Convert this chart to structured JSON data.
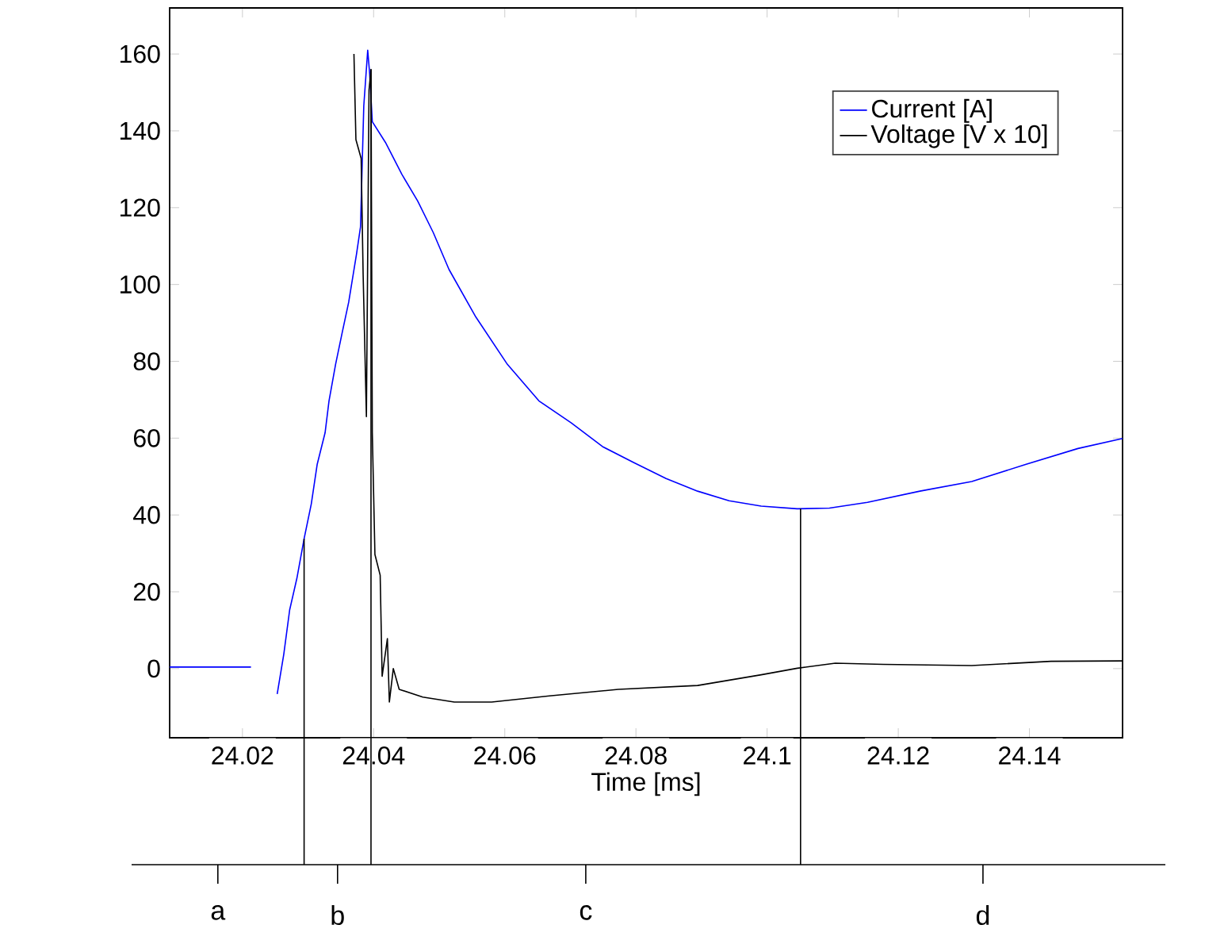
{
  "chart_data": {
    "type": "line",
    "xlabel": "Time [ms]",
    "xlim": [
      24.0089,
      24.1542
    ],
    "ylim": [
      -18,
      172
    ],
    "xticks": [
      24.02,
      24.04,
      24.06,
      24.08,
      24.1,
      24.12,
      24.14
    ],
    "yticks": [
      0,
      20,
      40,
      60,
      80,
      100,
      120,
      140,
      160
    ],
    "legend": "top right",
    "grid": false,
    "series": [
      {
        "name": "Current [A]",
        "color": "#0000ff",
        "x": [
          24.0089,
          24.0213,
          24.0223,
          24.0244,
          24.0253,
          24.0263,
          24.0272,
          24.0283,
          24.0294,
          24.0305,
          24.0314,
          24.0326,
          24.0332,
          24.0342,
          24.0352,
          24.0362,
          24.0374,
          24.038,
          24.0385,
          24.0391,
          24.0394,
          24.0398,
          24.0418,
          24.0443,
          24.0467,
          24.0491,
          24.0515,
          24.0556,
          24.0604,
          24.0652,
          24.0701,
          24.0749,
          24.0797,
          24.0846,
          24.0894,
          24.0942,
          24.0991,
          24.1046,
          24.1095,
          24.1153,
          24.1233,
          24.1312,
          24.1395,
          24.1474,
          24.1542
        ],
        "values": [
          0.4,
          0.4,
          null,
          null,
          -6.6,
          3.7,
          15.3,
          23.5,
          33.8,
          42.9,
          53.2,
          61.4,
          69.7,
          79.2,
          87.4,
          95.4,
          108,
          115,
          146.5,
          161,
          154.8,
          142.4,
          137,
          128.7,
          121.8,
          113.5,
          103.9,
          91.5,
          79.2,
          69.7,
          64,
          57.8,
          53.6,
          49.5,
          46.2,
          43.7,
          42.3,
          41.6,
          41.8,
          43.3,
          46.2,
          48.7,
          53.2,
          57.3,
          59.9
        ]
      },
      {
        "name": "Voltage [V x 10]",
        "color": "#000000",
        "x": [
          24.037,
          24.0373,
          24.0381,
          24.0384,
          24.0389,
          24.0393,
          24.0396,
          24.0398,
          24.0402,
          24.041,
          24.0413,
          24.0421,
          24.0424,
          24.043,
          24.0439,
          24.0475,
          24.0523,
          24.058,
          24.0668,
          24.0773,
          24.0894,
          24.0991,
          24.1046,
          24.1104,
          24.1177,
          24.1312,
          24.1433,
          24.1542
        ],
        "values": [
          160,
          137.7,
          132.8,
          102.7,
          65.6,
          150.6,
          156,
          61.4,
          29.7,
          24.3,
          -2,
          7.8,
          -8.7,
          0,
          -5.4,
          -7.4,
          -8.7,
          -8.7,
          -7.1,
          -5.4,
          -4.4,
          -1.6,
          0.1,
          1.4,
          1.1,
          0.8,
          1.9,
          2
        ]
      }
    ],
    "ref_lines": [
      {
        "axis": "x",
        "value": 24.0294,
        "color": "#000000"
      },
      {
        "axis": "x",
        "value": 24.0396,
        "color": "#000000"
      },
      {
        "axis": "x",
        "value": 24.1051,
        "color": "#000000"
      }
    ],
    "annotations": [
      "a",
      "b",
      "c",
      "d"
    ]
  }
}
